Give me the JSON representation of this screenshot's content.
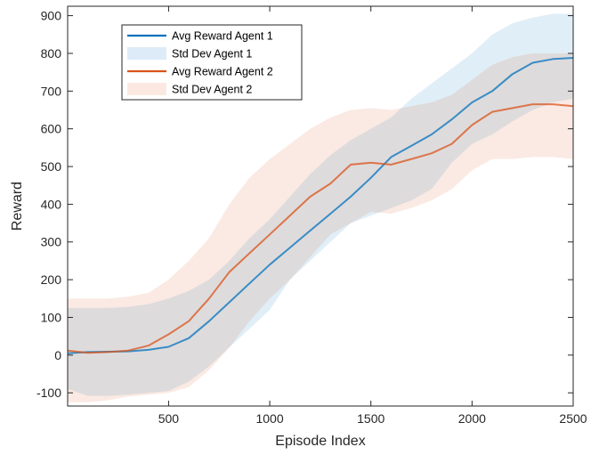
{
  "chart_data": {
    "type": "line",
    "xlabel": "Episode Index",
    "ylabel": "Reward",
    "xlim": [
      1,
      2500
    ],
    "ylim": [
      -135,
      925
    ],
    "xticks": [
      500,
      1000,
      1500,
      2000,
      2500
    ],
    "yticks": [
      -100,
      0,
      100,
      200,
      300,
      400,
      500,
      600,
      700,
      800,
      900
    ],
    "grid": false,
    "legend_position": "top-left",
    "legend": [
      {
        "label": "Avg Reward Agent 1",
        "kind": "line",
        "color": "#0072BD"
      },
      {
        "label": "Std Dev Agent 1",
        "kind": "patch",
        "color": "#DCEBF7"
      },
      {
        "label": "Avg Reward Agent 2",
        "kind": "line",
        "color": "#D95319"
      },
      {
        "label": "Std Dev Agent 2",
        "kind": "patch",
        "color": "#FBE9E1"
      }
    ],
    "series": [
      {
        "name": "Avg Reward Agent 1",
        "color": "#0072BD",
        "band_color": "#0072BD",
        "x": [
          1,
          100,
          200,
          300,
          400,
          500,
          600,
          700,
          800,
          900,
          1000,
          1100,
          1200,
          1300,
          1400,
          1500,
          1600,
          1700,
          1800,
          1900,
          2000,
          2100,
          2200,
          2300,
          2400,
          2500
        ],
        "y": [
          5,
          8,
          9,
          10,
          14,
          22,
          45,
          90,
          140,
          190,
          240,
          285,
          330,
          375,
          420,
          470,
          525,
          555,
          585,
          625,
          670,
          700,
          745,
          775,
          785,
          788
        ],
        "lower": [
          -90,
          -108,
          -108,
          -105,
          -100,
          -95,
          -70,
          -30,
          20,
          70,
          120,
          200,
          250,
          300,
          350,
          370,
          390,
          410,
          440,
          510,
          560,
          585,
          620,
          650,
          670,
          680
        ],
        "upper": [
          125,
          125,
          125,
          128,
          135,
          150,
          170,
          200,
          250,
          310,
          360,
          420,
          480,
          530,
          570,
          600,
          630,
          680,
          720,
          760,
          800,
          850,
          880,
          895,
          905,
          905
        ]
      },
      {
        "name": "Avg Reward Agent 2",
        "color": "#D95319",
        "band_color": "#D95319",
        "x": [
          1,
          100,
          200,
          300,
          400,
          500,
          600,
          700,
          800,
          900,
          1000,
          1100,
          1200,
          1300,
          1400,
          1500,
          1600,
          1700,
          1800,
          1900,
          2000,
          2100,
          2200,
          2300,
          2400,
          2500
        ],
        "y": [
          12,
          6,
          8,
          12,
          25,
          55,
          90,
          150,
          220,
          270,
          320,
          370,
          420,
          455,
          505,
          510,
          505,
          520,
          535,
          560,
          610,
          645,
          655,
          665,
          665,
          660
        ],
        "lower": [
          -125,
          -125,
          -120,
          -110,
          -105,
          -100,
          -85,
          -40,
          20,
          90,
          150,
          200,
          260,
          320,
          350,
          380,
          375,
          390,
          410,
          440,
          490,
          520,
          520,
          525,
          525,
          520
        ],
        "upper": [
          150,
          150,
          150,
          155,
          165,
          200,
          250,
          310,
          400,
          470,
          520,
          560,
          600,
          630,
          650,
          655,
          650,
          660,
          670,
          690,
          730,
          770,
          790,
          800,
          800,
          800
        ]
      }
    ]
  }
}
